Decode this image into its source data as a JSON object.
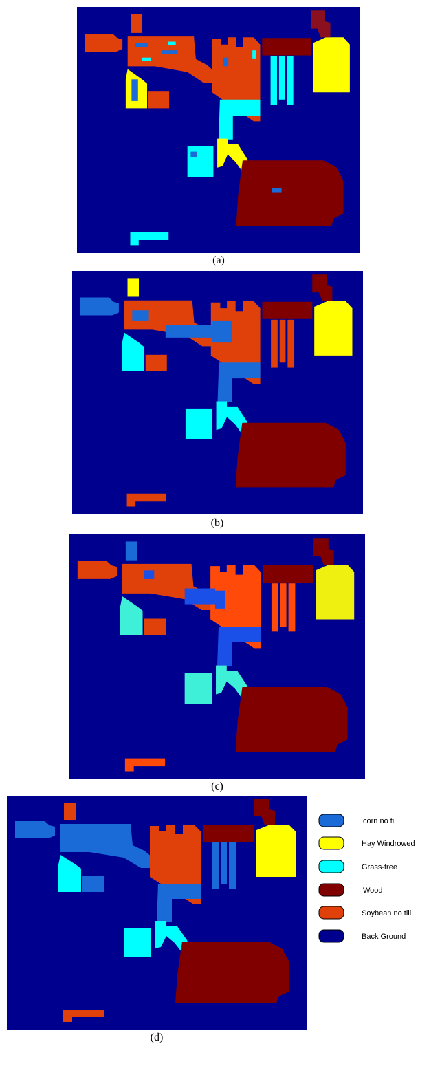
{
  "figure": {
    "captions": [
      "(a)",
      "(b)",
      "(c)",
      "(d)"
    ],
    "legend": [
      "corn no til",
      "Hay Windrowed",
      "Grass-tree",
      "Wood",
      "Soybean no till",
      "Back Ground"
    ]
  }
}
